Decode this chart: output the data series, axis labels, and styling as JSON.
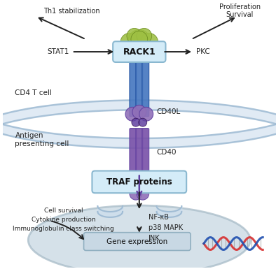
{
  "bg_color": "#ffffff",
  "membrane_color": "#a0bcd4",
  "membrane_fill": "#ccdded",
  "nucleus_fill": "#c8d8e2",
  "nucleus_edge": "#a8bcc8",
  "rack1_box_fill": "#d4ecf8",
  "rack1_box_edge": "#8ab8d0",
  "rack1_text": "RACK1",
  "rack1_green": "#9ec043",
  "rack1_green_edge": "#6a8a20",
  "traf_box_fill": "#d4ecf8",
  "traf_box_edge": "#8ab8d0",
  "traf_text": "TRAF proteins",
  "gene_box_fill": "#c8d8e4",
  "gene_box_edge": "#90afc0",
  "gene_text": "Gene expression",
  "cd40l_text": "CD40L",
  "cd40_text": "CD40",
  "cd4_text": "CD4 T cell",
  "apc_text": "Antigen\npresenting cell",
  "stat1_text": "STAT1",
  "pkc_text": "PKC",
  "th1_text": "Th1 stabilization",
  "prolif_text": "Proliferation\nSurvival",
  "nfkb_text": "NF-κB\np38 MAPK\nJNK",
  "cell_survival_text": "Cell survival\nCytokine production\nImmunoglobulin class switching",
  "tube_blue": "#4878c0",
  "tube_blue_dark": "#2050a0",
  "purple_light": "#9070b8",
  "purple_dark": "#6040a0",
  "purple_intracell": "#7850a8",
  "dna_red": "#d83030",
  "dna_blue": "#2050b0",
  "arrow_color": "#222222",
  "label_color": "#222222"
}
